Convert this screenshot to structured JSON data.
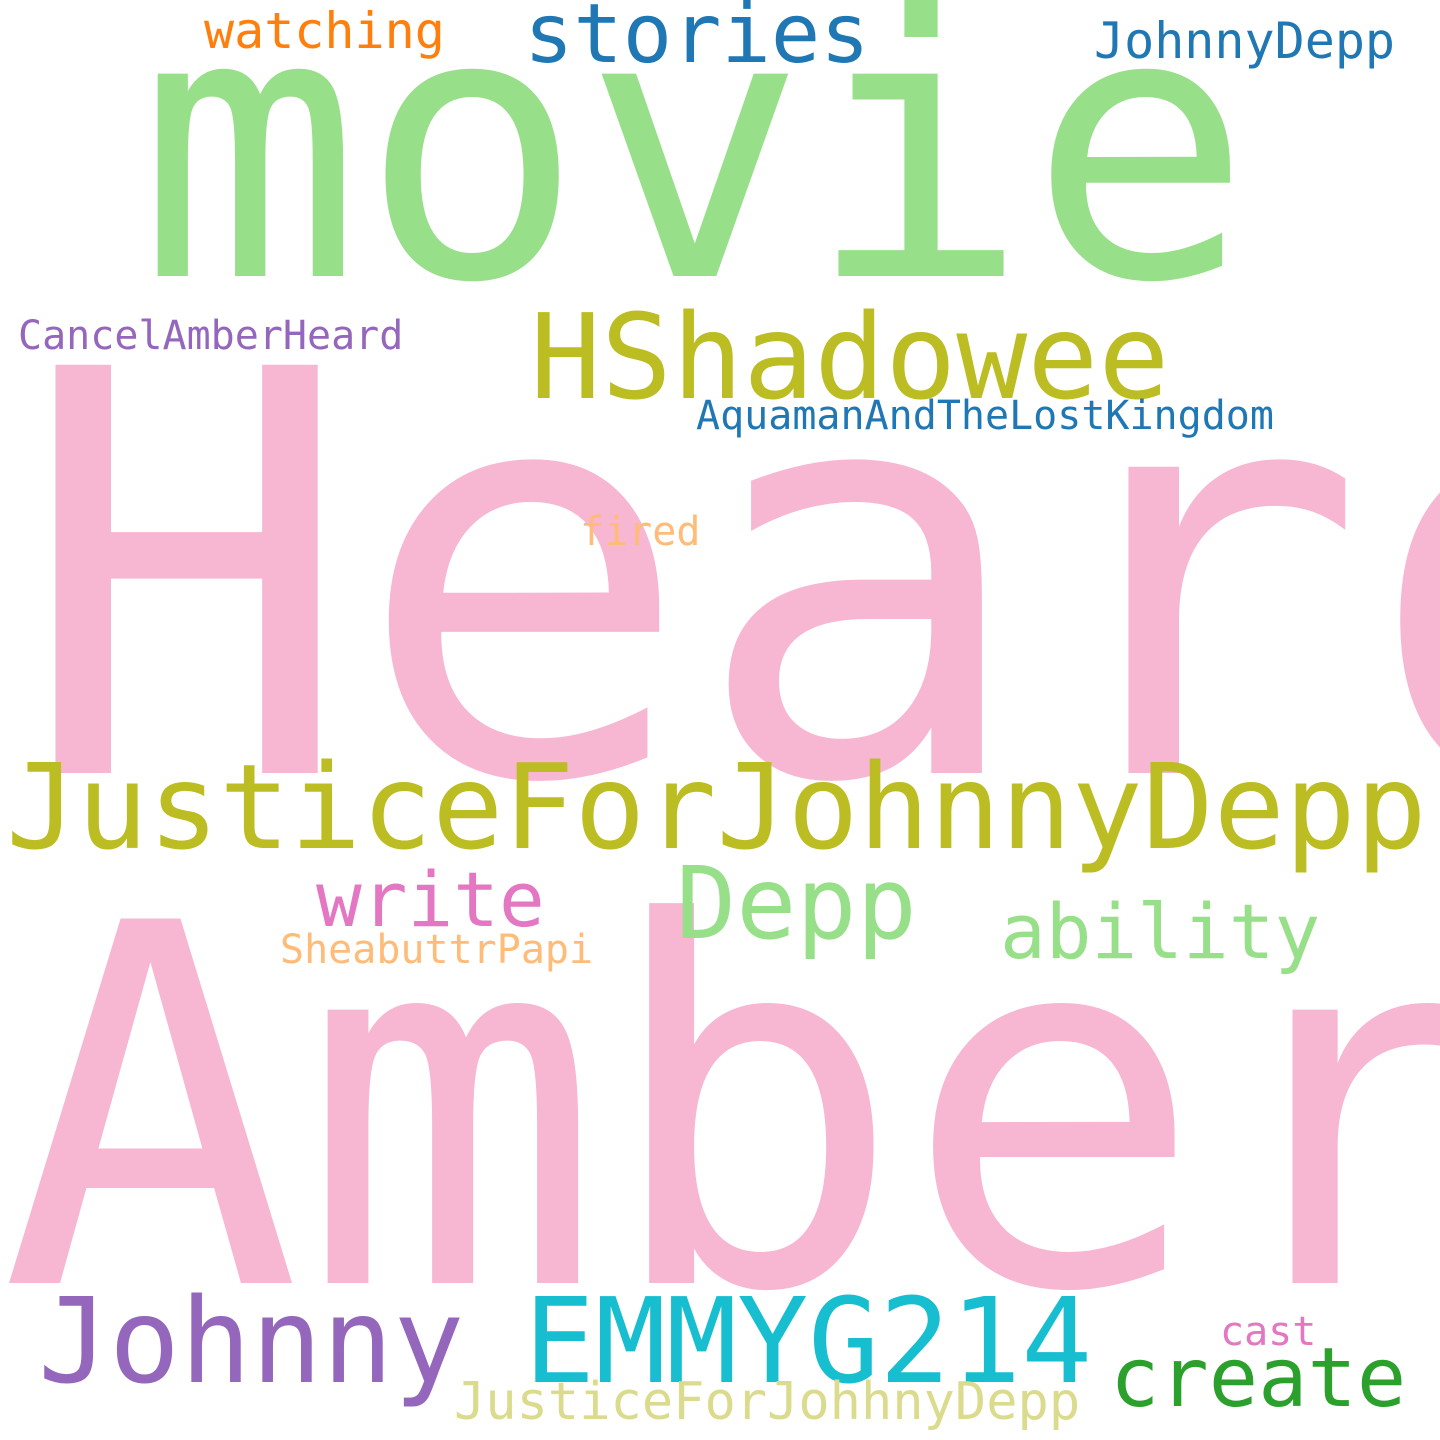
{
  "words": {
    "heard": {
      "text": "Heard",
      "color": "#f7b6d2"
    },
    "amber": {
      "text": "Amber",
      "color": "#f7b6d2"
    },
    "movie": {
      "text": "movie",
      "color": "#98df8a"
    },
    "jfjd1": {
      "text": "JusticeForJohnnyDepp",
      "color": "#bcbd22"
    },
    "hshadow": {
      "text": "HShadowee",
      "color": "#bcbd22"
    },
    "johnny": {
      "text": "Johnny",
      "color": "#9467bd"
    },
    "emmy": {
      "text": "EMMYG214",
      "color": "#17becf"
    },
    "depp": {
      "text": "Depp",
      "color": "#98df8a"
    },
    "stories": {
      "text": "stories",
      "color": "#1f77b4"
    },
    "create": {
      "text": "create",
      "color": "#2ca02c"
    },
    "write": {
      "text": "write",
      "color": "#e377c2"
    },
    "ability": {
      "text": "ability",
      "color": "#98df8a"
    },
    "jfjd2": {
      "text": "JusticeForJohhnyDepp",
      "color": "#dbdb8d"
    },
    "watching": {
      "text": "watching",
      "color": "#ff7f0e"
    },
    "jd": {
      "text": "JohnnyDepp",
      "color": "#1f77b4"
    },
    "cancel": {
      "text": "CancelAmberHeard",
      "color": "#9467bd"
    },
    "aqua": {
      "text": "AquamanAndTheLostKingdom",
      "color": "#1f77b4"
    },
    "fired": {
      "text": "fired",
      "color": "#ffbb78"
    },
    "shea": {
      "text": "SheabuttrPapi",
      "color": "#ffbb78"
    },
    "cast": {
      "text": "cast",
      "color": "#e377c2"
    }
  }
}
